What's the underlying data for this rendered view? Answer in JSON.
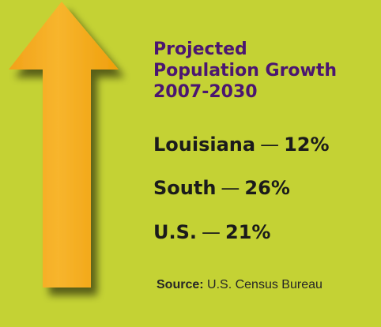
{
  "colors": {
    "background": "#c4d234",
    "arrow_light": "#f8ae27",
    "arrow_dark": "#f09d0d",
    "title": "#4b1670",
    "text": "#1b1b1b"
  },
  "title_lines": [
    "Projected",
    "Population Growth",
    "2007-2030"
  ],
  "stats": [
    {
      "region": "Louisiana",
      "dash": "—",
      "value": "12%"
    },
    {
      "region": "South",
      "dash": "—",
      "value": "26%"
    },
    {
      "region": "U.S.",
      "dash": "—",
      "value": "21%"
    }
  ],
  "source": {
    "label": "Source:",
    "text": "U.S. Census Bureau"
  }
}
